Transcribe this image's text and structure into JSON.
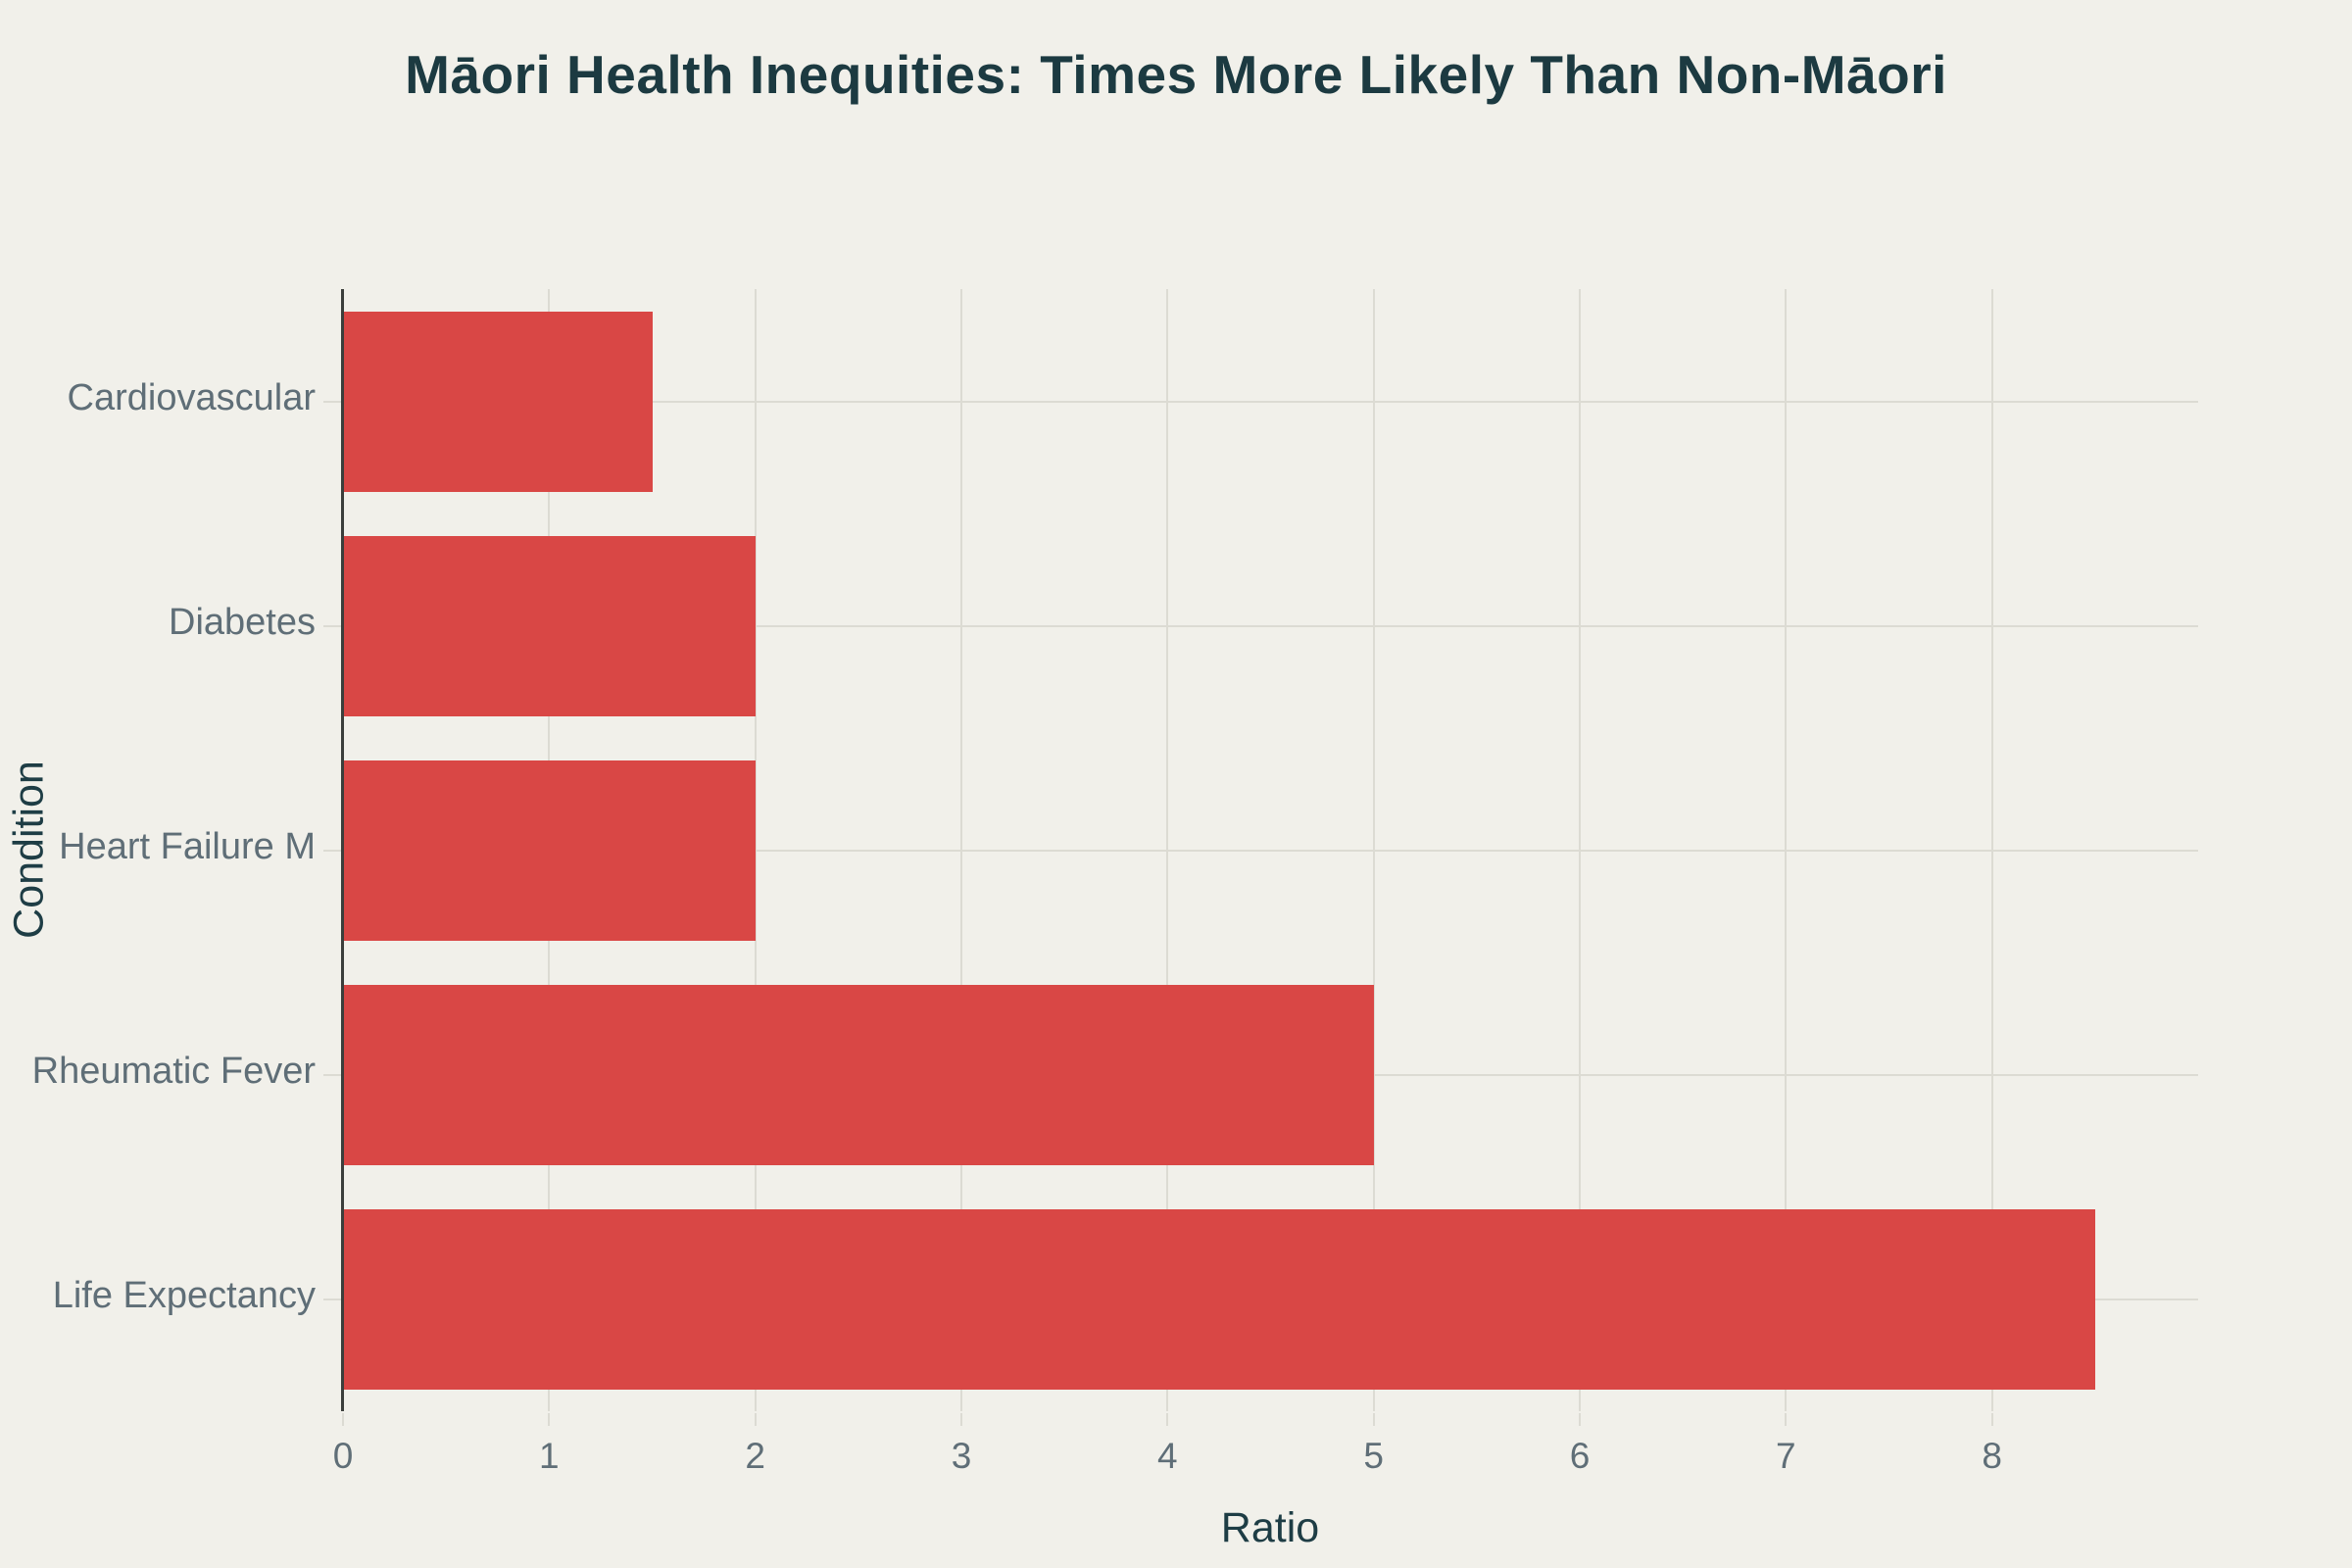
{
  "chart_data": {
    "type": "bar",
    "orientation": "horizontal",
    "title": "Māori Health Inequities: Times More Likely Than Non-Māori",
    "xlabel": "Ratio",
    "ylabel": "Condition",
    "categories": [
      "Cardiovascular",
      "Diabetes",
      "Heart Failure M",
      "Rheumatic Fever",
      "Life Expectancy"
    ],
    "values": [
      1.5,
      2,
      2,
      5,
      8.5
    ],
    "xlim": [
      0,
      9
    ],
    "x_ticks": [
      0,
      1,
      2,
      3,
      4,
      5,
      6,
      7,
      8
    ],
    "grid": true,
    "legend": "none",
    "colors": {
      "background": "#f1f0ea",
      "bar": "#d94745",
      "grid": "#dcdbd3",
      "axis_line": "#3b3e3b",
      "title": "#1c3a41",
      "axis_title": "#1e3d45",
      "tick_label": "#5f6e77"
    }
  }
}
